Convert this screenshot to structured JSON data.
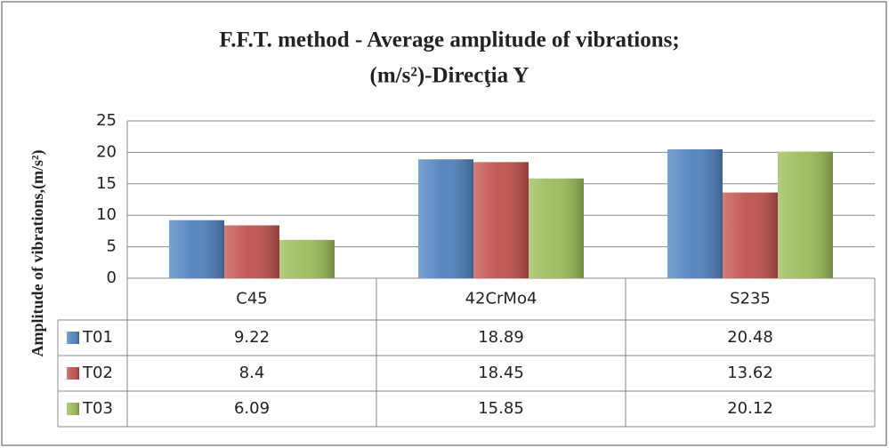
{
  "chart_data": {
    "type": "bar",
    "title": [
      "F.F.T. method - Average amplitude of vibrations;",
      "(m/s²)-Direcţia Y"
    ],
    "y_label": "Amplitude of vibrations,(m/s²)",
    "categories": [
      "C45",
      "42CrMo4",
      "S235"
    ],
    "series": [
      {
        "name": "T01",
        "color": "#4f81bd",
        "values": [
          9.22,
          18.89,
          20.48
        ]
      },
      {
        "name": "T02",
        "color": "#c0504d",
        "values": [
          8.4,
          18.45,
          13.62
        ]
      },
      {
        "name": "T03",
        "color": "#9bbb59",
        "values": [
          6.09,
          15.85,
          20.12
        ]
      }
    ],
    "ylim": [
      0,
      25
    ],
    "yticks": [
      0,
      5,
      10,
      15,
      20,
      25
    ],
    "grid": true,
    "data_table": true
  }
}
